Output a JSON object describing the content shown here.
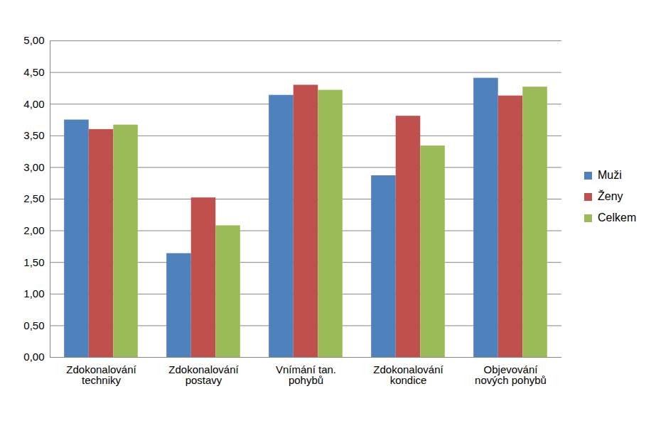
{
  "chart_data": {
    "type": "bar",
    "categories": [
      "Zdokonalování\ntechniky",
      "Zdokonalování\npostavy",
      "Vnímání tan.\npohybů",
      "Zdokonalování\nkondice",
      "Objevování\nnových pohybů"
    ],
    "series": [
      {
        "name": "Muži",
        "color": "#4F81BD",
        "values": [
          3.75,
          1.64,
          4.14,
          2.87,
          4.41
        ]
      },
      {
        "name": "Ženy",
        "color": "#C0504D",
        "values": [
          3.6,
          2.52,
          4.3,
          3.81,
          4.13
        ]
      },
      {
        "name": "Celkem",
        "color": "#9BBB59",
        "values": [
          3.67,
          2.08,
          4.22,
          3.34,
          4.27
        ]
      }
    ],
    "ylim": [
      0,
      5
    ],
    "yticks": [
      {
        "value": 0,
        "label": "0,00"
      },
      {
        "value": 0.5,
        "label": "0,50"
      },
      {
        "value": 1,
        "label": "1,00"
      },
      {
        "value": 1.5,
        "label": "1,50"
      },
      {
        "value": 2,
        "label": "2,00"
      },
      {
        "value": 2.5,
        "label": "2,50"
      },
      {
        "value": 3,
        "label": "3,00"
      },
      {
        "value": 3.5,
        "label": "3,50"
      },
      {
        "value": 4,
        "label": "4,00"
      },
      {
        "value": 4.5,
        "label": "4,50"
      },
      {
        "value": 5,
        "label": "5,00"
      }
    ],
    "grid": true,
    "legend": "right"
  }
}
